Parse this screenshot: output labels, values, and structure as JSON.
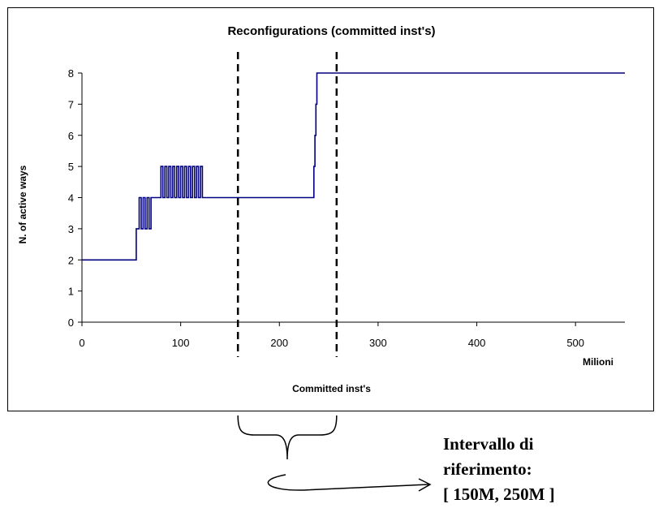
{
  "chart_data": {
    "type": "line",
    "title": "Reconfigurations (committed inst's)",
    "xlabel": "Committed inst's",
    "x_unit_label": "Milioni",
    "ylabel": "N. of active ways",
    "xlim": [
      0,
      550
    ],
    "ylim": [
      0,
      8
    ],
    "x_ticks": [
      0,
      100,
      200,
      300,
      400,
      500
    ],
    "y_ticks": [
      0,
      1,
      2,
      3,
      4,
      5,
      6,
      7,
      8
    ],
    "grid": false,
    "line_color": "#000080",
    "series": [
      {
        "x": [
          0,
          55,
          55,
          58,
          58,
          60,
          60,
          62,
          62,
          64,
          64,
          66,
          66,
          68,
          68,
          70,
          70,
          73,
          73,
          80,
          80,
          82,
          82,
          84,
          84,
          86,
          86,
          88,
          88,
          90,
          90,
          92,
          92,
          94,
          94,
          96,
          96,
          98,
          98,
          100,
          100,
          102,
          102,
          104,
          104,
          106,
          106,
          108,
          108,
          110,
          110,
          112,
          112,
          114,
          114,
          116,
          116,
          118,
          118,
          120,
          120,
          122,
          122,
          124,
          124,
          235,
          235,
          236,
          236,
          237,
          237,
          238,
          238,
          550
        ],
        "y": [
          2,
          2,
          3,
          3,
          4,
          4,
          3,
          3,
          4,
          4,
          3,
          3,
          4,
          4,
          3,
          3,
          4,
          4,
          4,
          4,
          5,
          5,
          4,
          4,
          5,
          5,
          4,
          4,
          5,
          5,
          4,
          4,
          5,
          5,
          4,
          4,
          5,
          5,
          4,
          4,
          5,
          5,
          4,
          4,
          5,
          5,
          4,
          4,
          5,
          5,
          4,
          4,
          5,
          5,
          4,
          4,
          5,
          5,
          4,
          4,
          5,
          5,
          4,
          4,
          4,
          4,
          5,
          5,
          6,
          6,
          7,
          7,
          8,
          8
        ]
      }
    ],
    "reference_lines_x": [
      158,
      258
    ]
  },
  "annotation": {
    "lines": [
      "Intervallo di",
      "riferimento:",
      "[ 150M, 250M ]"
    ]
  }
}
